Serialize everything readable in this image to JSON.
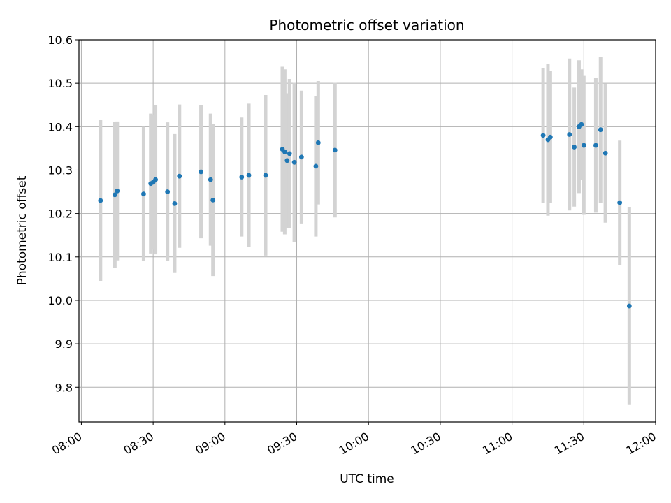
{
  "chart_data": {
    "type": "scatter",
    "title": "Photometric offset variation",
    "xlabel": "UTC time",
    "ylabel": "Photometric offset",
    "x_ticks": [
      "08:00",
      "08:30",
      "09:00",
      "09:30",
      "10:00",
      "10:30",
      "11:00",
      "11:30",
      "12:00"
    ],
    "y_ticks": [
      "9.8",
      "9.9",
      "10.0",
      "10.1",
      "10.2",
      "10.3",
      "10.4",
      "10.5",
      "10.6"
    ],
    "xlim": [
      "07:59",
      "12:00"
    ],
    "ylim": [
      9.72,
      10.6
    ],
    "grid": true,
    "marker_color": "#1f77b4",
    "errorbar_color": "#d3d3d3",
    "series": [
      {
        "points": [
          {
            "x": "08:08",
            "y": 10.23,
            "err": 0.185
          },
          {
            "x": "08:14",
            "y": 10.243,
            "err": 0.168
          },
          {
            "x": "08:15",
            "y": 10.252,
            "err": 0.16
          },
          {
            "x": "08:26",
            "y": 10.245,
            "err": 0.155
          },
          {
            "x": "08:29",
            "y": 10.269,
            "err": 0.161
          },
          {
            "x": "08:30",
            "y": 10.272,
            "err": 0.155
          },
          {
            "x": "08:31",
            "y": 10.278,
            "err": 0.172
          },
          {
            "x": "08:36",
            "y": 10.25,
            "err": 0.16
          },
          {
            "x": "08:39",
            "y": 10.223,
            "err": 0.16
          },
          {
            "x": "08:41",
            "y": 10.286,
            "err": 0.165
          },
          {
            "x": "08:50",
            "y": 10.296,
            "err": 0.153
          },
          {
            "x": "08:54",
            "y": 10.278,
            "err": 0.152
          },
          {
            "x": "08:55",
            "y": 10.231,
            "err": 0.175
          },
          {
            "x": "09:07",
            "y": 10.284,
            "err": 0.137
          },
          {
            "x": "09:10",
            "y": 10.288,
            "err": 0.165
          },
          {
            "x": "09:17",
            "y": 10.288,
            "err": 0.185
          },
          {
            "x": "09:24",
            "y": 10.348,
            "err": 0.19
          },
          {
            "x": "09:25",
            "y": 10.342,
            "err": 0.19
          },
          {
            "x": "09:26",
            "y": 10.322,
            "err": 0.155
          },
          {
            "x": "09:27",
            "y": 10.338,
            "err": 0.172
          },
          {
            "x": "09:29",
            "y": 10.318,
            "err": 0.183
          },
          {
            "x": "09:32",
            "y": 10.33,
            "err": 0.153
          },
          {
            "x": "09:38",
            "y": 10.309,
            "err": 0.162
          },
          {
            "x": "09:39",
            "y": 10.363,
            "err": 0.142
          },
          {
            "x": "09:46",
            "y": 10.346,
            "err": 0.155
          },
          {
            "x": "11:13",
            "y": 10.38,
            "err": 0.155
          },
          {
            "x": "11:15",
            "y": 10.37,
            "err": 0.175
          },
          {
            "x": "11:16",
            "y": 10.376,
            "err": 0.152
          },
          {
            "x": "11:24",
            "y": 10.382,
            "err": 0.175
          },
          {
            "x": "11:26",
            "y": 10.353,
            "err": 0.137
          },
          {
            "x": "11:28",
            "y": 10.4,
            "err": 0.153
          },
          {
            "x": "11:29",
            "y": 10.405,
            "err": 0.127
          },
          {
            "x": "11:30",
            "y": 10.357,
            "err": 0.16
          },
          {
            "x": "11:35",
            "y": 10.357,
            "err": 0.155
          },
          {
            "x": "11:37",
            "y": 10.393,
            "err": 0.168
          },
          {
            "x": "11:39",
            "y": 10.339,
            "err": 0.16
          },
          {
            "x": "11:45",
            "y": 10.225,
            "err": 0.143
          },
          {
            "x": "11:49",
            "y": 9.987,
            "err": 0.228
          }
        ]
      }
    ]
  }
}
